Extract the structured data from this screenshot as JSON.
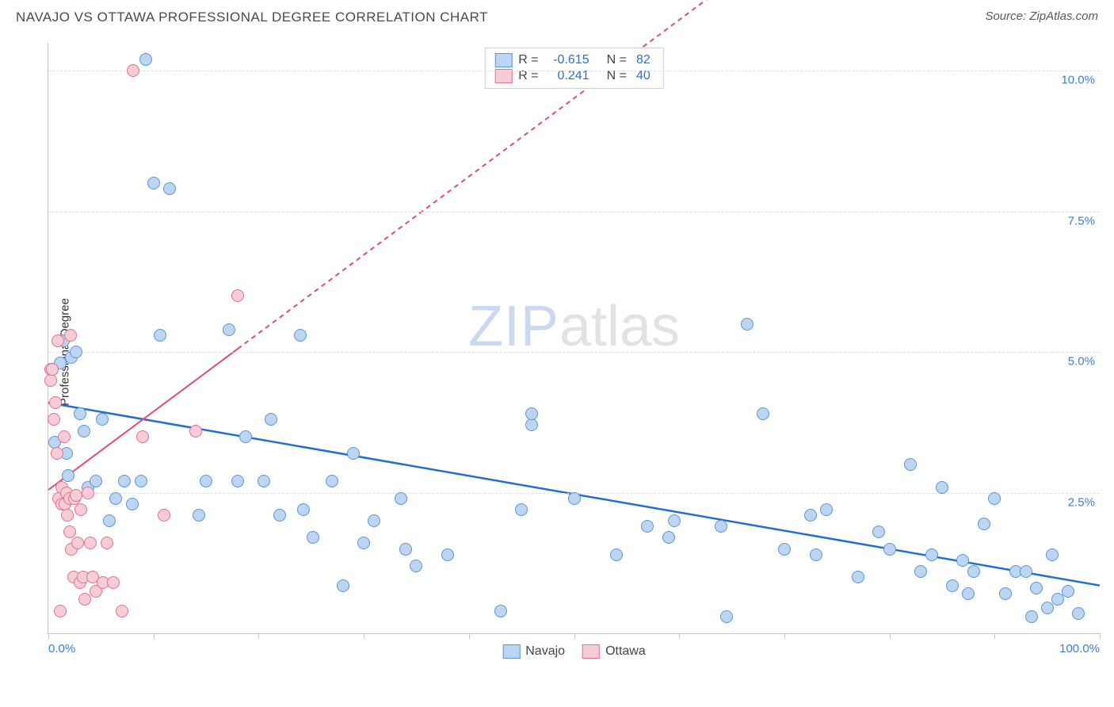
{
  "header": {
    "title": "NAVAJO VS OTTAWA PROFESSIONAL DEGREE CORRELATION CHART",
    "source": "Source: ZipAtlas.com"
  },
  "chart": {
    "type": "scatter",
    "ylabel": "Professional Degree",
    "xlim": [
      0,
      100
    ],
    "ylim": [
      0,
      10.5
    ],
    "xtick_positions": [
      0,
      10,
      20,
      30,
      40,
      50,
      60,
      70,
      80,
      90,
      100
    ],
    "xtick_labels": {
      "0": "0.0%",
      "100": "100.0%"
    },
    "ytick_positions": [
      2.5,
      5.0,
      7.5,
      10.0
    ],
    "ytick_labels": [
      "2.5%",
      "5.0%",
      "7.5%",
      "10.0%"
    ],
    "grid_color": "#dedede",
    "axis_color": "#c8c8c8",
    "background_color": "#ffffff",
    "label_color": "#3b7dd8",
    "marker_radius": 8,
    "marker_stroke_width": 1.5,
    "series": [
      {
        "name": "Navajo",
        "fill": "#bcd5f2",
        "stroke": "#5a95dd",
        "R": "-0.615",
        "N": "82",
        "regression": {
          "x1": 0,
          "y1": 4.1,
          "x2": 100,
          "y2": 0.85,
          "color": "#1f6fd4",
          "width": 2.5,
          "dash": "none"
        },
        "points": [
          [
            0.4,
            4.7
          ],
          [
            0.6,
            3.4
          ],
          [
            1.1,
            4.8
          ],
          [
            1.4,
            5.2
          ],
          [
            1.7,
            3.2
          ],
          [
            2.2,
            4.9
          ],
          [
            1.9,
            2.8
          ],
          [
            2.6,
            5.0
          ],
          [
            3.0,
            3.9
          ],
          [
            3.4,
            3.6
          ],
          [
            3.8,
            2.6
          ],
          [
            4.5,
            2.7
          ],
          [
            5.1,
            3.8
          ],
          [
            5.8,
            2.0
          ],
          [
            6.4,
            2.4
          ],
          [
            7.2,
            2.7
          ],
          [
            8.0,
            2.3
          ],
          [
            8.8,
            2.7
          ],
          [
            9.3,
            10.2
          ],
          [
            10.0,
            8.0
          ],
          [
            10.6,
            5.3
          ],
          [
            11.5,
            7.9
          ],
          [
            14.3,
            2.1
          ],
          [
            15.0,
            2.7
          ],
          [
            17.2,
            5.4
          ],
          [
            18.0,
            2.7
          ],
          [
            18.8,
            3.5
          ],
          [
            20.5,
            2.7
          ],
          [
            21.2,
            3.8
          ],
          [
            22.0,
            2.1
          ],
          [
            24.0,
            5.3
          ],
          [
            24.3,
            2.2
          ],
          [
            25.2,
            1.7
          ],
          [
            27.0,
            2.7
          ],
          [
            28.0,
            0.85
          ],
          [
            29.0,
            3.2
          ],
          [
            30.0,
            1.6
          ],
          [
            31.0,
            2.0
          ],
          [
            33.5,
            2.4
          ],
          [
            34.0,
            1.5
          ],
          [
            35.0,
            1.2
          ],
          [
            38.0,
            1.4
          ],
          [
            43.0,
            0.4
          ],
          [
            45.0,
            2.2
          ],
          [
            46.0,
            3.7
          ],
          [
            46.0,
            3.9
          ],
          [
            50.0,
            2.4
          ],
          [
            54.0,
            1.4
          ],
          [
            57.0,
            1.9
          ],
          [
            59.0,
            1.7
          ],
          [
            59.5,
            2.0
          ],
          [
            64.0,
            1.9
          ],
          [
            64.5,
            0.3
          ],
          [
            66.5,
            5.5
          ],
          [
            68.0,
            3.9
          ],
          [
            70.0,
            1.5
          ],
          [
            72.5,
            2.1
          ],
          [
            73.0,
            1.4
          ],
          [
            74.0,
            2.2
          ],
          [
            77.0,
            1.0
          ],
          [
            79.0,
            1.8
          ],
          [
            80.0,
            1.5
          ],
          [
            82.0,
            3.0
          ],
          [
            83.0,
            1.1
          ],
          [
            84.0,
            1.4
          ],
          [
            85.0,
            2.6
          ],
          [
            86.0,
            0.85
          ],
          [
            87.0,
            1.3
          ],
          [
            87.5,
            0.7
          ],
          [
            88.0,
            1.1
          ],
          [
            89.0,
            1.95
          ],
          [
            90.0,
            2.4
          ],
          [
            91.0,
            0.7
          ],
          [
            92.0,
            1.1
          ],
          [
            93.0,
            1.1
          ],
          [
            93.5,
            0.3
          ],
          [
            94.0,
            0.8
          ],
          [
            95.0,
            0.45
          ],
          [
            95.5,
            1.4
          ],
          [
            96.0,
            0.6
          ],
          [
            97.0,
            0.75
          ],
          [
            98.0,
            0.35
          ]
        ]
      },
      {
        "name": "Ottawa",
        "fill": "#f6cdd6",
        "stroke": "#e66f8e",
        "R": "0.241",
        "N": "40",
        "regression": {
          "x1": 0,
          "y1": 2.55,
          "x2": 70,
          "y2": 12.3,
          "color": "#e34b74",
          "width": 2,
          "dash": "6 5",
          "solid_until_x": 18
        },
        "points": [
          [
            0.2,
            4.7
          ],
          [
            0.25,
            4.5
          ],
          [
            0.4,
            4.7
          ],
          [
            0.5,
            3.8
          ],
          [
            0.7,
            4.1
          ],
          [
            0.8,
            3.2
          ],
          [
            0.9,
            5.2
          ],
          [
            1.0,
            2.4
          ],
          [
            1.1,
            0.4
          ],
          [
            1.3,
            2.6
          ],
          [
            1.3,
            2.3
          ],
          [
            1.5,
            3.5
          ],
          [
            1.6,
            2.3
          ],
          [
            1.7,
            2.5
          ],
          [
            1.8,
            2.1
          ],
          [
            2.0,
            1.8
          ],
          [
            2.0,
            2.4
          ],
          [
            2.1,
            5.3
          ],
          [
            2.2,
            1.5
          ],
          [
            2.4,
            1.0
          ],
          [
            2.5,
            2.4
          ],
          [
            2.6,
            2.45
          ],
          [
            2.8,
            1.6
          ],
          [
            3.0,
            0.9
          ],
          [
            3.1,
            2.2
          ],
          [
            3.3,
            1.0
          ],
          [
            3.5,
            0.6
          ],
          [
            3.8,
            2.5
          ],
          [
            4.0,
            1.6
          ],
          [
            4.2,
            1.0
          ],
          [
            4.5,
            0.75
          ],
          [
            5.2,
            0.9
          ],
          [
            5.6,
            1.6
          ],
          [
            6.2,
            0.9
          ],
          [
            7.0,
            0.4
          ],
          [
            8.1,
            10.0
          ],
          [
            9.0,
            3.5
          ],
          [
            11.0,
            2.1
          ],
          [
            14.0,
            3.6
          ],
          [
            18.0,
            6.0
          ]
        ]
      }
    ],
    "legend_bottom": [
      {
        "label": "Navajo",
        "fill": "#bcd5f2",
        "stroke": "#5a95dd"
      },
      {
        "label": "Ottawa",
        "fill": "#f6cdd6",
        "stroke": "#e66f8e"
      }
    ],
    "watermark": {
      "part1": "ZIP",
      "part2": "atlas"
    }
  }
}
